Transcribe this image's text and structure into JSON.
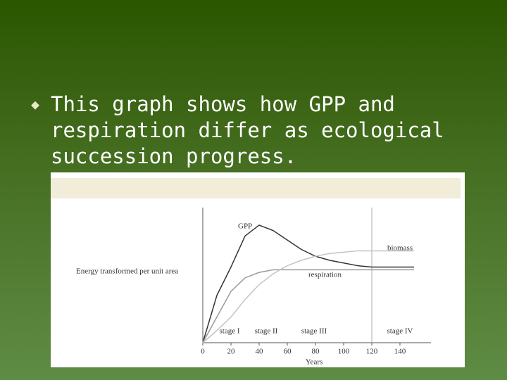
{
  "slide": {
    "bullet": "This graph shows how GPP and respiration differ as ecological succession progress."
  },
  "chart_data": {
    "type": "line",
    "y_label": "Energy transformed per unit area",
    "x_label": "Years",
    "x": [
      0,
      10,
      20,
      30,
      40,
      50,
      60,
      70,
      80,
      90,
      100,
      110,
      120,
      130,
      140,
      150
    ],
    "series": [
      {
        "name": "GPP",
        "color": "#333333",
        "values": [
          0,
          35,
          56,
          79,
          87,
          83,
          76,
          69,
          64,
          61,
          59,
          57,
          56,
          56,
          56,
          56
        ]
      },
      {
        "name": "respiration",
        "color": "#999999",
        "values": [
          0,
          19,
          38,
          48,
          52,
          54,
          54,
          54,
          54,
          54,
          54,
          54,
          54,
          54,
          54,
          54
        ]
      },
      {
        "name": "biomass",
        "color": "#c4c4c4",
        "values": [
          0,
          9,
          19,
          32,
          43,
          51,
          57,
          61,
          64,
          66,
          67,
          68,
          68,
          68,
          68,
          68
        ]
      }
    ],
    "stages": [
      "stage I",
      "stage II",
      "stage III",
      "stage IV"
    ],
    "stage_line": 120,
    "xlim": [
      0,
      160
    ],
    "ylim": [
      0,
      100
    ],
    "xticks": [
      0,
      20,
      40,
      60,
      80,
      100,
      120,
      140
    ]
  }
}
